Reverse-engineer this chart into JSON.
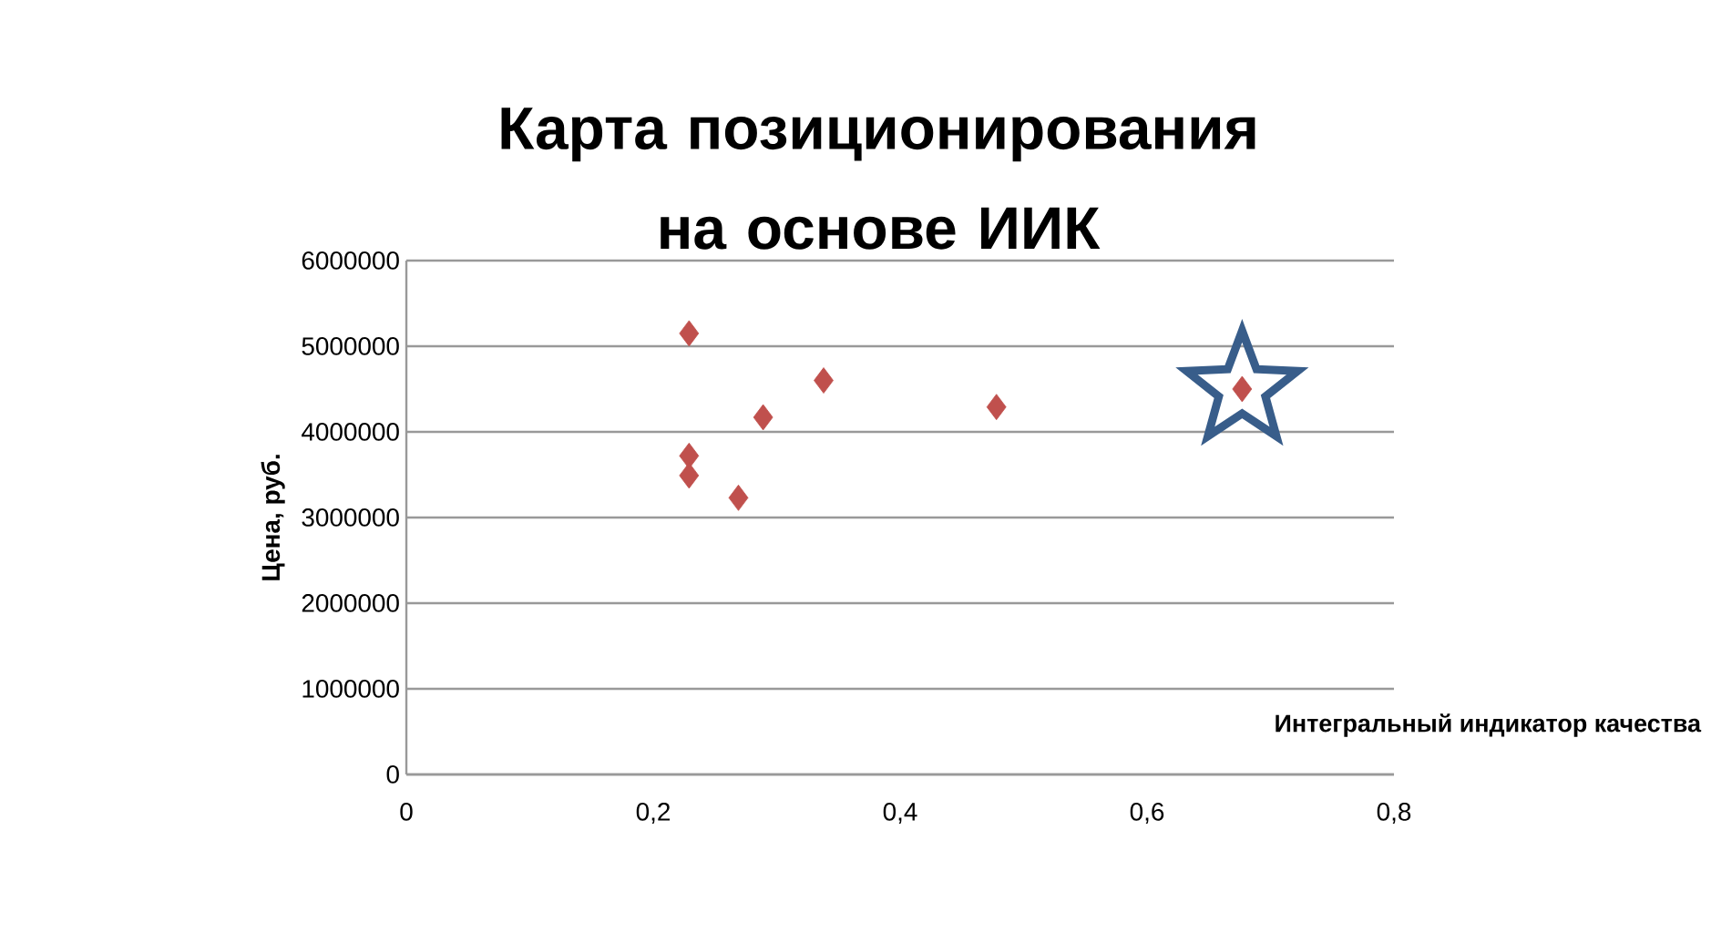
{
  "chart_data": {
    "type": "scatter",
    "title": "Карта позиционирования на основе ИИК",
    "xlabel": "Интегральный индикатор качества",
    "ylabel": "Цена, руб.",
    "series": [
      {
        "color": "#c0504d",
        "marker": "diamond",
        "x": [
          0.229,
          0.229,
          0.229,
          0.269,
          0.289,
          0.338,
          0.478,
          0.677
        ],
        "values": [
          5150000,
          3720000,
          3490000,
          3230000,
          4170000,
          4600000,
          4290000,
          4500000
        ]
      },
      {
        "color": "#385d8a",
        "marker": "star",
        "x": [
          0.677
        ],
        "values": [
          4500000
        ]
      }
    ],
    "xlim": [
      0,
      0.8
    ],
    "ylim": [
      0,
      6000000
    ],
    "xticks": [
      0,
      {
        "value": 0.2,
        "label": "0,2"
      },
      {
        "value": 0.4,
        "label": "0,4"
      },
      {
        "value": 0.6,
        "label": "0,6"
      },
      {
        "value": 0.8,
        "label": "0,8"
      }
    ],
    "yticks": [
      0,
      1000000,
      2000000,
      3000000,
      4000000,
      5000000,
      6000000
    ],
    "grid": "y"
  }
}
